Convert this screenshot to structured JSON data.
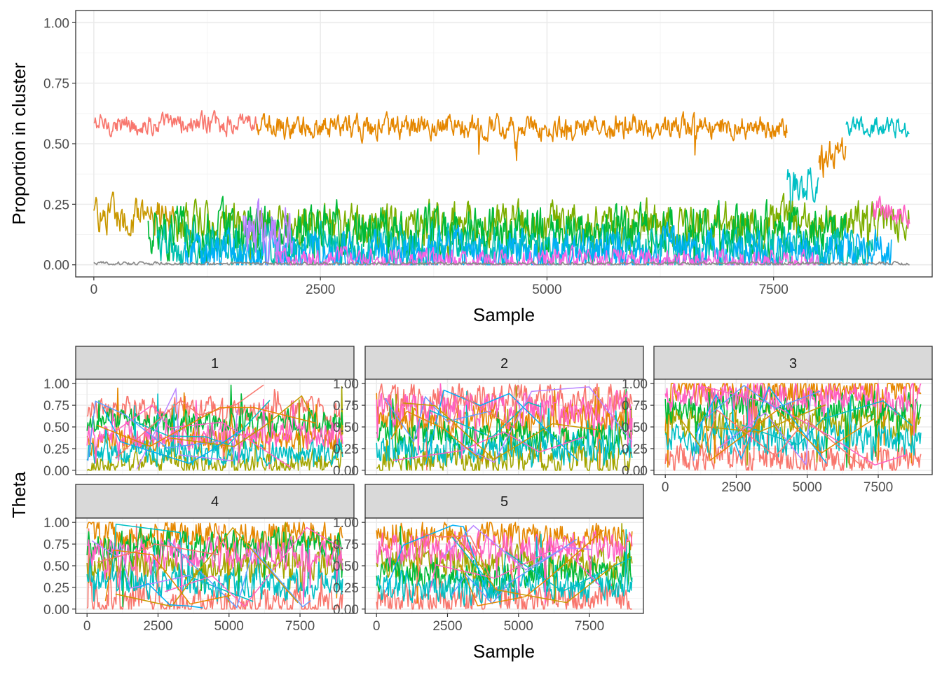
{
  "palette": [
    "#F8766D",
    "#E58700",
    "#C99800",
    "#A3A500",
    "#6BB100",
    "#00BA38",
    "#00BF7D",
    "#00C0AF",
    "#00BCD8",
    "#00B0F6",
    "#619CFF",
    "#B983FF",
    "#E76BF3",
    "#FD61D1",
    "#FF67A4",
    "#8C8C8C"
  ],
  "chart_data": [
    {
      "type": "line",
      "panel": "top",
      "xlabel": "Sample",
      "ylabel": "Proportion in cluster",
      "xlim": [
        -200,
        9250
      ],
      "ylim": [
        -0.05,
        1.05
      ],
      "x_ticks": [
        0,
        2500,
        5000,
        7500
      ],
      "x_tick_labels": [
        "0",
        "2500",
        "5000",
        "7500"
      ],
      "y_ticks": [
        0,
        0.25,
        0.5,
        0.75,
        1
      ],
      "y_tick_labels": [
        "0.00",
        "0.25",
        "0.50",
        "0.75",
        "1.00"
      ],
      "grid": true,
      "n_samples": 9000,
      "series": [
        {
          "color": "#F8766D",
          "segments": [
            [
              0,
              1800,
              0.58,
              0.03
            ]
          ]
        },
        {
          "color": "#E58700",
          "segments": [
            [
              1800,
              7650,
              0.57,
              0.035
            ],
            [
              8000,
              8300,
              0.42,
              0.06
            ]
          ]
        },
        {
          "color": "#00BFC4",
          "segments": [
            [
              7650,
              8000,
              0.33,
              0.05
            ],
            [
              8300,
              9000,
              0.57,
              0.03
            ]
          ]
        },
        {
          "color": "#C99800",
          "segments": [
            [
              0,
              900,
              0.2,
              0.05
            ]
          ]
        },
        {
          "color": "#7CAE00",
          "segments": [
            [
              900,
              9000,
              0.17,
              0.06
            ]
          ]
        },
        {
          "color": "#00BA38",
          "segments": [
            [
              600,
              8300,
              0.14,
              0.07
            ]
          ]
        },
        {
          "color": "#00C0AF",
          "segments": [
            [
              700,
              8600,
              0.07,
              0.06
            ]
          ]
        },
        {
          "color": "#00B0F6",
          "segments": [
            [
              1000,
              8800,
              0.05,
              0.06
            ]
          ]
        },
        {
          "color": "#B983FF",
          "segments": [
            [
              1650,
              2200,
              0.14,
              0.08
            ]
          ]
        },
        {
          "color": "#FF61C3",
          "segments": [
            [
              8600,
              9000,
              0.22,
              0.04
            ]
          ]
        },
        {
          "color": "#F564E3",
          "segments": [
            [
              2000,
              8000,
              0.02,
              0.03
            ]
          ]
        },
        {
          "color": "#8C8C8C",
          "segments": [
            [
              0,
              9000,
              0.005,
              0.005
            ]
          ]
        }
      ]
    },
    {
      "type": "line",
      "panel": "facets",
      "xlabel": "Sample",
      "ylabel": "Theta",
      "xlim": [
        -400,
        9400
      ],
      "ylim": [
        -0.05,
        1.05
      ],
      "x_ticks": [
        0,
        2500,
        5000,
        7500
      ],
      "x_tick_labels": [
        "0",
        "2500",
        "5000",
        "7500"
      ],
      "y_ticks": [
        0,
        0.25,
        0.5,
        0.75,
        1
      ],
      "y_tick_labels": [
        "0.00",
        "0.25",
        "0.50",
        "0.75",
        "1.00"
      ],
      "grid": true,
      "facets": [
        {
          "label": "1",
          "levels": [
            0.7,
            0.35,
            0.08,
            0.55,
            0.2,
            0.4
          ],
          "noise": 0.08
        },
        {
          "label": "2",
          "levels": [
            0.82,
            0.58,
            0.12,
            0.4,
            0.25,
            0.7
          ],
          "noise": 0.1
        },
        {
          "label": "3",
          "levels": [
            0.14,
            0.92,
            0.55,
            0.72,
            0.35,
            0.85
          ],
          "noise": 0.1
        },
        {
          "label": "4",
          "levels": [
            0.06,
            0.85,
            0.5,
            0.75,
            0.3,
            0.62
          ],
          "noise": 0.1
        },
        {
          "label": "5",
          "levels": [
            0.12,
            0.85,
            0.55,
            0.4,
            0.25,
            0.7
          ],
          "noise": 0.1
        }
      ]
    }
  ]
}
